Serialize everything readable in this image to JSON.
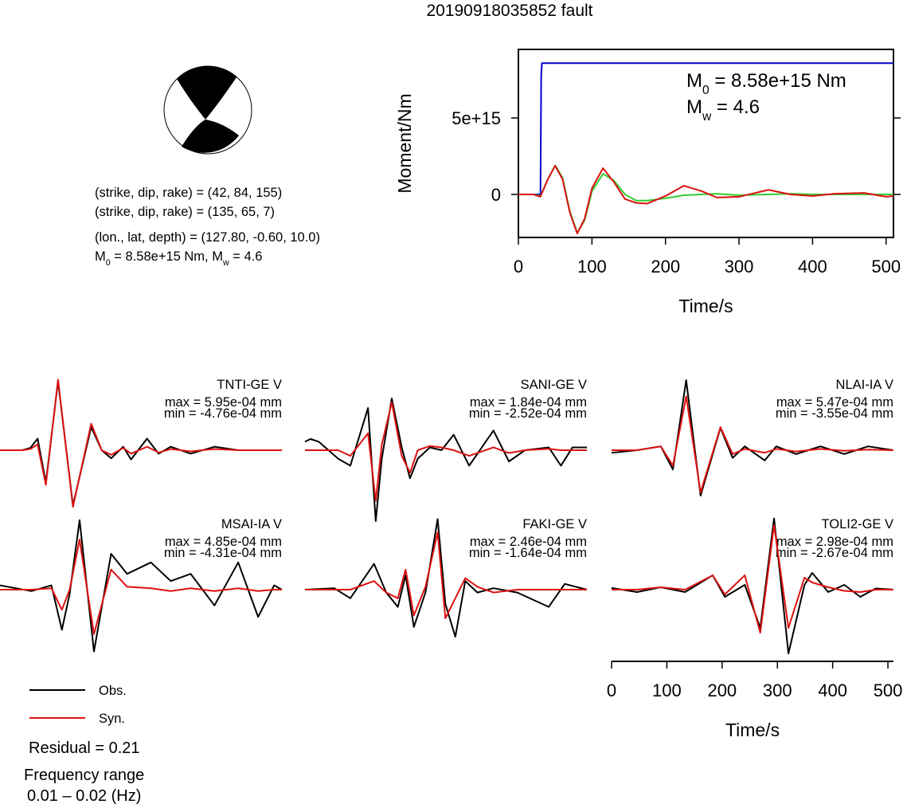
{
  "title": "20190918035852 fault",
  "source_info": {
    "lines": [
      "(strike, dip, rake) = (42, 84, 155)",
      "(strike, dip, rake) = (135, 65, 7)",
      "(lon., lat, depth) = (127.80, -0.60, 10.0)"
    ],
    "moment_line": [
      "M",
      "0",
      " = 8.58e+15 Nm, M",
      "w",
      " = 4.6"
    ]
  },
  "chart_data": [
    {
      "type": "line",
      "xlabel": "Time/s",
      "ylabel": "Moment/Nm",
      "xlim": [
        0,
        510
      ],
      "ylim": [
        -2810000000000000.0,
        9480000000000000.0
      ],
      "xticks": [
        0,
        100,
        200,
        300,
        400,
        500
      ],
      "yticks": [
        0,
        {
          "value": 5000000000000000.0,
          "label": "5e+15"
        }
      ],
      "annotations": [
        [
          "M",
          "0",
          " = 8.58e+15 Nm"
        ],
        [
          "M",
          "w",
          " = 4.6"
        ]
      ],
      "series": [
        {
          "color": "#0000cc",
          "x": [
            0,
            30,
            31,
            32,
            510
          ],
          "values": [
            0,
            0,
            7800000000000000.0,
            8580000000000000.0,
            8580000000000000.0
          ]
        },
        {
          "color": "#33cc33",
          "x": [
            0,
            20,
            30,
            40,
            50,
            60,
            70,
            80,
            90,
            100,
            115,
            130,
            145,
            160,
            175,
            200,
            225,
            250,
            270,
            300,
            340,
            370,
            400,
            430,
            470,
            500,
            510
          ],
          "values": [
            0,
            0,
            -100000000000000.0,
            1000000000000000.0,
            1900000000000000.0,
            1100000000000000.0,
            -1100000000000000.0,
            -2500000000000000.0,
            -1700000000000000.0,
            200000000000000.0,
            1350000000000000.0,
            900000000000000.0,
            0,
            -400000000000000.0,
            -400000000000000.0,
            -250000000000000.0,
            -50000000000000.0,
            0,
            50000000000000.0,
            -50000000000000.0,
            0,
            50000000000000.0,
            0,
            0,
            0,
            0,
            0
          ]
        },
        {
          "color": "#dd1111",
          "x": [
            0,
            20,
            30,
            40,
            50,
            60,
            70,
            80,
            90,
            100,
            115,
            130,
            145,
            160,
            175,
            200,
            225,
            250,
            270,
            300,
            340,
            370,
            400,
            430,
            470,
            500,
            510
          ],
          "values": [
            0,
            0,
            -150000000000000.0,
            1000000000000000.0,
            1870000000000000.0,
            1000000000000000.0,
            -1200000000000000.0,
            -2550000000000000.0,
            -1600000000000000.0,
            400000000000000.0,
            1720000000000000.0,
            800000000000000.0,
            -300000000000000.0,
            -550000000000000.0,
            -600000000000000.0,
            -100000000000000.0,
            570000000000000.0,
            200000000000000.0,
            -200000000000000.0,
            -150000000000000.0,
            300000000000000.0,
            0,
            -100000000000000.0,
            50000000000000.0,
            100000000000000.0,
            -150000000000000.0,
            -100000000000000.0
          ]
        }
      ]
    },
    {
      "type": "waveforms",
      "legend": [
        {
          "name": "Obs.",
          "color": "#000000"
        },
        {
          "name": "Syn.",
          "color": "#dd1111"
        }
      ],
      "residual": "Residual = 0.21",
      "frequency_title": "Frequency range",
      "frequency_range": "0.01 – 0.02 (Hz)",
      "panels": [
        {
          "title": "TNTI-GE V",
          "max_label": "max = 5.95e-04 mm",
          "min_label": "min = -4.76e-04 mm",
          "xlim": [
            0,
            510
          ],
          "ylim": [
            -0.00062,
            0.00062
          ],
          "x": [
            0,
            40,
            55,
            68,
            83,
            105,
            132,
            165,
            184,
            201,
            223,
            237,
            266,
            287,
            309,
            345,
            388,
            431,
            510
          ],
          "series": [
            {
              "values": [
                0,
                0,
                2e-05,
                0.0001,
                -0.00028,
                0.000595,
                -0.000476,
                0.0002,
                0,
                -7e-05,
                3e-05,
                -8e-05,
                0.0001,
                -3e-05,
                3e-05,
                -3e-05,
                3e-05,
                0,
                0
              ]
            },
            {
              "values": [
                0,
                0,
                1e-05,
                5e-05,
                -0.0003,
                0.00061,
                -0.00049,
                0.00023,
                0,
                -4e-05,
                2e-05,
                -3e-05,
                3e-05,
                -2e-05,
                1e-05,
                -1e-05,
                1e-05,
                0,
                0
              ]
            }
          ]
        },
        {
          "title": "SANI-GE V",
          "max_label": "max = 1.84e-04 mm",
          "min_label": "min = -2.52e-04 mm",
          "xlim": [
            0,
            510
          ],
          "ylim": [
            -0.000255,
            0.000255
          ],
          "x": [
            0,
            10,
            25,
            60,
            82,
            114,
            128,
            139,
            157,
            175,
            190,
            204,
            226,
            247,
            269,
            297,
            341,
            369,
            398,
            441,
            463,
            484,
            510
          ],
          "series": [
            {
              "values": [
                3e-05,
                4e-05,
                3e-05,
                -3e-05,
                -5.5e-05,
                0.00015,
                -0.000252,
                -3e-05,
                0.000184,
                1e-05,
                -0.0001,
                -3e-05,
                1e-05,
                0,
                5.5e-05,
                -5.5e-05,
                7e-05,
                -4e-05,
                0,
                1e-05,
                -5.5e-05,
                1e-05,
                1e-05
              ]
            },
            {
              "values": [
                0,
                0,
                0,
                0,
                -2e-05,
                6e-05,
                -0.00018,
                2e-05,
                0.00017,
                -2e-05,
                -8e-05,
                0,
                1.5e-05,
                1e-05,
                0,
                -2e-05,
                1e-05,
                -1e-05,
                0,
                5e-06,
                0,
                0,
                0
              ]
            }
          ]
        },
        {
          "title": "NLAI-IA V",
          "max_label": "max = 5.47e-04 mm",
          "min_label": "min = -3.55e-04 mm",
          "xlim": [
            0,
            510
          ],
          "ylim": [
            -0.00056,
            0.00056
          ],
          "x": [
            0,
            46,
            89,
            111,
            135,
            161,
            197,
            219,
            241,
            277,
            298,
            334,
            378,
            421,
            464,
            510
          ],
          "series": [
            {
              "values": [
                -2e-05,
                0,
                3e-05,
                -0.00015,
                0.000547,
                -0.000355,
                0.000175,
                -6e-05,
                3e-05,
                -8e-05,
                3e-05,
                -3e-05,
                3e-05,
                -3e-05,
                3e-05,
                0
              ]
            },
            {
              "values": [
                0,
                0,
                3e-05,
                -0.00012,
                0.00042,
                -0.00033,
                0.00018,
                -3e-05,
                1e-05,
                -2e-05,
                1e-05,
                -1e-05,
                1e-05,
                -5e-06,
                5e-06,
                0
              ]
            }
          ]
        },
        {
          "title": "MSAI-IA V",
          "max_label": "max = 4.85e-04 mm",
          "min_label": "min = -4.31e-04 mm",
          "xlim": [
            0,
            510
          ],
          "ylim": [
            -0.0005,
            0.0005
          ],
          "x": [
            0,
            57,
            93,
            112,
            126,
            144,
            170,
            201,
            230,
            273,
            309,
            345,
            388,
            431,
            467,
            496,
            510
          ],
          "series": [
            {
              "values": [
                3e-05,
                -1e-05,
                3e-05,
                -0.00028,
                -3e-05,
                0.000485,
                -0.000431,
                0.00025,
                0.00011,
                0.00019,
                6e-05,
                0.00011,
                -0.00011,
                0.00019,
                -0.00019,
                3e-05,
                0
              ]
            },
            {
              "values": [
                0,
                0,
                1e-05,
                -0.00014,
                0,
                0.00035,
                -0.00031,
                0.00014,
                2e-05,
                1e-05,
                -1e-05,
                1e-05,
                -1e-05,
                1e-05,
                -1e-05,
                0,
                0
              ]
            }
          ]
        },
        {
          "title": "FAKI-GE V",
          "max_label": "max = 2.46e-04 mm",
          "min_label": "min = -1.64e-04 mm",
          "xlim": [
            0,
            510
          ],
          "ylim": [
            -0.00025,
            0.00025
          ],
          "x": [
            0,
            53,
            82,
            125,
            147,
            168,
            182,
            197,
            218,
            240,
            254,
            272,
            290,
            312,
            341,
            384,
            441,
            470,
            510
          ],
          "series": [
            {
              "values": [
                0,
                5e-06,
                -3e-05,
                9e-05,
                -1e-05,
                -6e-05,
                5e-05,
                -0.00013,
                -1e-05,
                0.000246,
                -5e-05,
                -0.000164,
                3e-05,
                -1e-05,
                5e-06,
                -1e-05,
                -6e-05,
                2e-05,
                0
              ]
            },
            {
              "values": [
                0,
                0,
                0,
                3e-05,
                -1e-05,
                -3e-05,
                7e-05,
                -9e-05,
                1e-05,
                0.0002,
                -0.0001,
                -3e-05,
                4e-05,
                1e-05,
                -1e-05,
                0,
                0,
                0,
                0
              ]
            }
          ]
        },
        {
          "title": "TOLI2-GE V",
          "max_label": "max = 2.98e-04 mm",
          "min_label": "min = -2.67e-04 mm",
          "xlim": [
            0,
            510
          ],
          "ylim": [
            -0.0003,
            0.0003
          ],
          "xticks": [
            0,
            100,
            200,
            300,
            400,
            500
          ],
          "xlabel": "Time/s",
          "x": [
            0,
            46,
            89,
            133,
            183,
            205,
            241,
            269,
            294,
            320,
            349,
            363,
            392,
            421,
            450,
            478,
            510
          ],
          "series": [
            {
              "values": [
                7e-06,
                -1e-05,
                1e-05,
                -1e-05,
                6e-05,
                -3e-05,
                2e-05,
                -0.00016,
                0.000298,
                -0.000267,
                2e-05,
                7e-05,
                -1e-05,
                2e-05,
                -3e-05,
                5e-06,
                0
              ]
            },
            {
              "values": [
                0,
                0,
                1e-05,
                0,
                6e-05,
                -2e-05,
                6e-05,
                -0.00018,
                0.00027,
                -0.00016,
                5e-05,
                3e-05,
                1e-05,
                -5e-06,
                -1e-05,
                0,
                0
              ]
            }
          ]
        }
      ]
    }
  ]
}
